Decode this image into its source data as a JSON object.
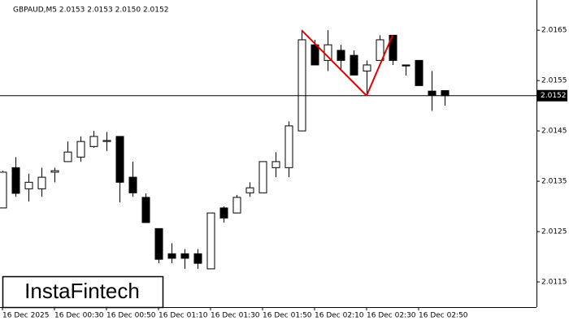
{
  "chart_data": {
    "type": "candlestick",
    "title": "GBPAUD,M5  2.0153 2.0153 2.0150 2.0152",
    "categories": [
      "16 Dec 2025",
      null,
      null,
      null,
      "16 Dec 00:30",
      null,
      null,
      null,
      "16 Dec 00:50",
      null,
      null,
      null,
      "16 Dec 01:10",
      null,
      null,
      null,
      "16 Dec 01:30",
      null,
      null,
      null,
      "16 Dec 01:50",
      null,
      null,
      null,
      "16 Dec 02:10",
      null,
      null,
      null,
      "16 Dec 02:30",
      null,
      null,
      null,
      "16 Dec 02:50",
      null,
      null
    ],
    "open": [
      2.01297,
      2.01377,
      2.01335,
      2.01335,
      2.01368,
      2.01389,
      2.01398,
      2.01419,
      2.01429,
      2.01439,
      2.01358,
      2.01318,
      2.01256,
      2.01206,
      2.01206,
      2.01206,
      2.01176,
      2.01297,
      2.01287,
      2.01327,
      2.01327,
      2.01377,
      2.01377,
      2.0145,
      2.01621,
      2.0159,
      2.0161,
      2.016,
      2.01569,
      2.0159,
      2.0164,
      2.01581,
      2.0159,
      2.01529,
      2.0153
    ],
    "high": [
      2.01371,
      2.01398,
      2.01365,
      2.01377,
      2.01377,
      2.01429,
      2.01439,
      2.0145,
      2.01448,
      2.01439,
      2.01389,
      2.01326,
      2.01256,
      2.01227,
      2.01215,
      2.01215,
      2.01287,
      2.013,
      2.01323,
      2.01348,
      2.01389,
      2.01408,
      2.01469,
      2.0165,
      2.01631,
      2.0165,
      2.01621,
      2.0161,
      2.0159,
      2.0164,
      2.0164,
      2.01581,
      2.0159,
      2.01569,
      2.0153
    ],
    "low": [
      2.01297,
      2.01319,
      2.0131,
      2.01319,
      2.01348,
      2.01389,
      2.01389,
      2.01416,
      2.0141,
      2.01308,
      2.01319,
      2.01268,
      2.01187,
      2.01187,
      2.01176,
      2.01176,
      2.01176,
      2.01268,
      2.01287,
      2.01319,
      2.01327,
      2.01358,
      2.01358,
      2.0145,
      2.01581,
      2.01569,
      2.01569,
      2.0156,
      2.01521,
      2.0159,
      2.01581,
      2.0156,
      2.0154,
      2.0149,
      2.015
    ],
    "close": [
      2.01368,
      2.01326,
      2.01348,
      2.01358,
      2.01371,
      2.01408,
      2.01429,
      2.01439,
      2.01431,
      2.01348,
      2.01327,
      2.01268,
      2.01195,
      2.01197,
      2.01197,
      2.01187,
      2.01287,
      2.01277,
      2.01318,
      2.01337,
      2.01389,
      2.01389,
      2.0146,
      2.01631,
      2.01581,
      2.01621,
      2.0159,
      2.01561,
      2.01581,
      2.01631,
      2.0159,
      2.01579,
      2.0154,
      2.01521,
      2.0152
    ],
    "up_color": "#ffffff",
    "down_color": "#000000",
    "ylim": [
      2.011,
      2.0171
    ],
    "yticks": [
      2.0115,
      2.0125,
      2.0135,
      2.0145,
      2.0155,
      2.0165
    ],
    "current_price": 2.0152,
    "pattern": {
      "color": "#e00000",
      "x": [
        23,
        28,
        30
      ],
      "y": [
        2.0165,
        2.0152,
        2.0164
      ]
    }
  },
  "logo": "InstaFintech"
}
